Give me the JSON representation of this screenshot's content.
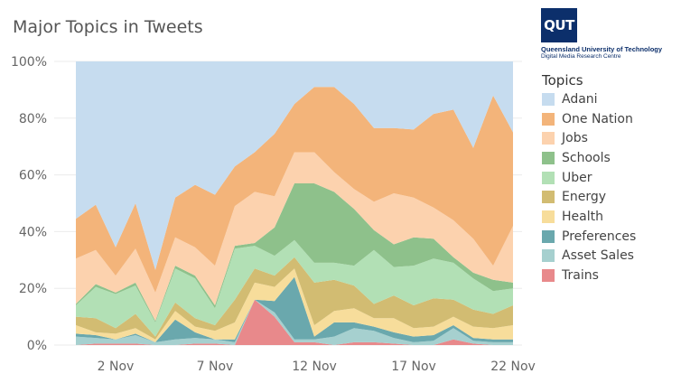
{
  "chart_data": {
    "type": "area",
    "stacked": true,
    "normalized": true,
    "title": "Major Topics in Tweets",
    "x_start_day": 31,
    "x": [
      "31 Oct",
      "1 Nov",
      "2 Nov",
      "3 Nov",
      "4 Nov",
      "5 Nov",
      "6 Nov",
      "7 Nov",
      "8 Nov",
      "9 Nov",
      "10 Nov",
      "11 Nov",
      "12 Nov",
      "13 Nov",
      "14 Nov",
      "15 Nov",
      "16 Nov",
      "17 Nov",
      "18 Nov",
      "19 Nov",
      "20 Nov",
      "21 Nov",
      "22 Nov"
    ],
    "x_tick_labels": [
      "2 Nov",
      "7 Nov",
      "12 Nov",
      "17 Nov",
      "22 Nov"
    ],
    "y_tick_labels": [
      "0%",
      "20%",
      "40%",
      "60%",
      "80%",
      "100%"
    ],
    "ylim": [
      0,
      100
    ],
    "legend_title": "Topics",
    "legend_position": "right",
    "series": [
      {
        "name": "Trains",
        "color": "#e8898b",
        "values": [
          0,
          0.5,
          0.5,
          0.5,
          0,
          0,
          0.5,
          0.5,
          0,
          16,
          10,
          1,
          1,
          0,
          1,
          1,
          0.5,
          0,
          0,
          2,
          0.5,
          0,
          0
        ]
      },
      {
        "name": "Asset Sales",
        "color": "#a6d0cf",
        "values": [
          3,
          2,
          1.5,
          3,
          1,
          2,
          2,
          1.5,
          1,
          0,
          1.5,
          1,
          1,
          3,
          5,
          4,
          2,
          1,
          1.5,
          4,
          1,
          1,
          1
        ]
      },
      {
        "name": "Preferences",
        "color": "#6aa8ad",
        "values": [
          1,
          1,
          0,
          0.5,
          0,
          7,
          2,
          0,
          1,
          0,
          4,
          22,
          1,
          5,
          2,
          1.5,
          2,
          2,
          2,
          1,
          1,
          1,
          1
        ]
      },
      {
        "name": "Health",
        "color": "#f7dd9b",
        "values": [
          3,
          1,
          2,
          2,
          1,
          3,
          2,
          3,
          6,
          6,
          5,
          3,
          4,
          4,
          5,
          3,
          5,
          3,
          3,
          3,
          4,
          4,
          5
        ]
      },
      {
        "name": "Energy",
        "color": "#d2bc72",
        "values": [
          3,
          5,
          2,
          5,
          1,
          3,
          3,
          2,
          8,
          5,
          4,
          4,
          15,
          11,
          8,
          5,
          8,
          8,
          10,
          6,
          6,
          5,
          7
        ]
      },
      {
        "name": "Uber",
        "color": "#b2e0b5",
        "values": [
          4,
          11,
          12,
          10,
          5,
          12,
          14,
          6,
          18,
          8,
          7,
          6,
          7,
          6,
          7,
          19,
          10,
          14,
          14,
          13,
          11,
          8,
          6
        ]
      },
      {
        "name": "Schools",
        "color": "#8ec18b",
        "values": [
          0.5,
          1,
          0.5,
          1,
          0.5,
          1,
          1,
          1,
          1,
          1,
          10,
          20,
          28,
          25,
          20,
          7,
          8,
          10,
          7,
          2,
          2,
          4,
          2
        ]
      },
      {
        "name": "Jobs",
        "color": "#fcd2ae",
        "values": [
          16,
          12,
          6,
          12,
          10,
          10,
          10,
          14,
          14,
          18,
          11,
          11,
          11,
          7,
          7,
          10,
          18,
          14,
          11,
          13,
          12,
          5,
          20
        ]
      },
      {
        "name": "One Nation",
        "color": "#f3b47a",
        "values": [
          14,
          16,
          10,
          16,
          8,
          14,
          22,
          25,
          14,
          14,
          22,
          17,
          23,
          30,
          30,
          26,
          23,
          24,
          33,
          39,
          32,
          60,
          33
        ]
      },
      {
        "name": "Adani",
        "color": "#c6dcef",
        "values": [
          55.5,
          50.5,
          65.5,
          50,
          73.5,
          48,
          43.5,
          47,
          37,
          32,
          25.5,
          15,
          9,
          9,
          15,
          23.5,
          23.5,
          24,
          18.5,
          17,
          30.5,
          12,
          25
        ]
      }
    ]
  },
  "logo": {
    "mark": "QUT",
    "line1": "Queensland University of Technology",
    "line2": "Digital Media Research Centre"
  }
}
